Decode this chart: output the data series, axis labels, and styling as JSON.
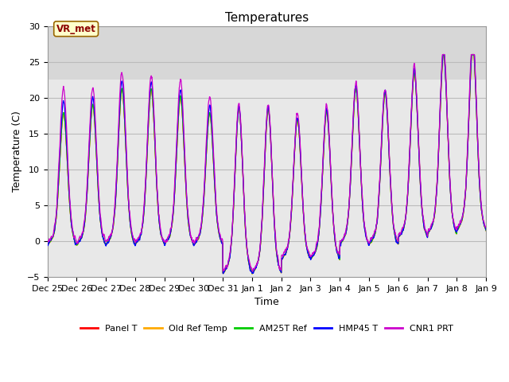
{
  "title": "Temperatures",
  "xlabel": "Time",
  "ylabel": "Temperature (C)",
  "ylim": [
    -5,
    30
  ],
  "xlim_days": 15,
  "annotation_text": "VR_met",
  "background_color": "#ffffff",
  "plot_bg_color": "#e8e8e8",
  "shaded_region": [
    22.5,
    30
  ],
  "shaded_color": "#d0d0d0",
  "grid_color": "#bbbbbb",
  "series_colors": {
    "Panel T": "#ff0000",
    "Old Ref Temp": "#ffaa00",
    "AM25T Ref": "#00cc00",
    "HMP45 T": "#0000ff",
    "CNR1 PRT": "#cc00cc"
  },
  "tick_labels": [
    "Dec 25",
    "Dec 26",
    "Dec 27",
    "Dec 28",
    "Dec 29",
    "Dec 30",
    "Dec 31",
    "Jan 1",
    "Jan 2",
    "Jan 3",
    "Jan 4",
    "Jan 5",
    "Jan 6",
    "Jan 7",
    "Jan 8",
    "Jan 9"
  ],
  "tick_positions": [
    0,
    1,
    2,
    3,
    4,
    5,
    6,
    7,
    8,
    9,
    10,
    11,
    12,
    13,
    14,
    15
  ],
  "yticks": [
    -5,
    0,
    5,
    10,
    15,
    20,
    25,
    30
  ],
  "figsize": [
    6.4,
    4.8
  ],
  "dpi": 100,
  "n_days": 15,
  "pts_per_day": 144,
  "peak_max_values": [
    15.5,
    16.5,
    18.5,
    18.5,
    17.5,
    15.5,
    15.5,
    15.5,
    14.5,
    15.5,
    18.5,
    18.0,
    20.5,
    23.0,
    24.0
  ],
  "min_values": [
    -0.5,
    -0.5,
    -0.5,
    -0.5,
    -0.5,
    -0.5,
    -4.5,
    -4.5,
    -2.5,
    -2.5,
    -0.5,
    -0.5,
    0.5,
    1.0,
    1.5
  ],
  "cnr1_extra": [
    3.0,
    2.0,
    2.0,
    1.5,
    2.0,
    2.0,
    0.5,
    0.5,
    0.5,
    0.5,
    0.5,
    0.5,
    0.5,
    0.5,
    1.0
  ],
  "hmp45_extra": [
    1.5,
    1.0,
    1.0,
    1.0,
    1.0,
    1.0,
    0.3,
    0.3,
    0.3,
    0.3,
    0.3,
    0.3,
    0.3,
    0.3,
    0.5
  ]
}
